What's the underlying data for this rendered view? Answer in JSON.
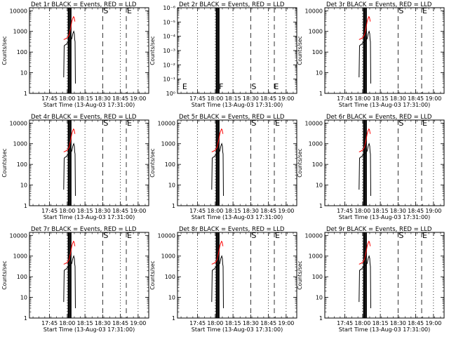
{
  "chart_data": {
    "type": "line",
    "layout": "3x3 grid",
    "xlabel": "Start Time (13-Aug-03 17:31:00)",
    "ylabel": "Counts/sec",
    "x_ticks": [
      "17:45",
      "18:00",
      "18:15",
      "18:30",
      "18:45",
      "19:00"
    ],
    "x_tick_minutes": [
      14,
      29,
      44,
      59,
      74,
      89
    ],
    "xlim_minutes": [
      -3,
      98
    ],
    "yscale": "log",
    "ylim": [
      1,
      14000
    ],
    "y_ticks": [
      "1",
      "10",
      "100",
      "1000",
      "10000"
    ],
    "series_styles": [
      {
        "color": "#000000"
      },
      {
        "color": "#ff0000"
      }
    ],
    "vlines": [
      {
        "minute": 14,
        "style": "dotted"
      },
      {
        "minute": 29,
        "style": "dotted"
      },
      {
        "minute": 30.2,
        "style": "thick"
      },
      {
        "minute": 31.8,
        "style": "thick"
      },
      {
        "minute": 44,
        "style": "dotted"
      },
      {
        "minute": 59,
        "style": "dashed"
      },
      {
        "minute": 74,
        "style": "dotted"
      },
      {
        "minute": 79,
        "style": "dashed"
      },
      {
        "minute": 89,
        "style": "dotted"
      }
    ],
    "marker_letters": [
      {
        "minute": 59,
        "text": "S"
      },
      {
        "minute": 79,
        "text": "E"
      }
    ],
    "panels": [
      {
        "title": "Det 1r BLACK = Events, RED = LLD",
        "variant": "standard",
        "black": [
          [
            26.0,
            6
          ],
          [
            26.4,
            200
          ],
          [
            26.9,
            215
          ],
          [
            27.4,
            225
          ],
          [
            28.2,
            240
          ],
          [
            29.5,
            300
          ],
          [
            31.0,
            350
          ],
          [
            32.8,
            440
          ],
          [
            33.8,
            800
          ],
          [
            34.5,
            1000
          ],
          [
            35.0,
            780
          ],
          [
            35.3,
            400
          ],
          [
            35.6,
            320
          ],
          [
            35.9,
            3
          ]
        ],
        "red": [
          [
            26.0,
            400
          ],
          [
            26.6,
            420
          ],
          [
            27.4,
            430
          ],
          [
            28.2,
            470
          ],
          [
            29.2,
            500
          ],
          [
            30.6,
            700
          ],
          [
            31.8,
            1400
          ],
          [
            32.8,
            3000
          ],
          [
            33.6,
            4200
          ],
          [
            34.3,
            5200
          ],
          [
            34.8,
            4800
          ],
          [
            35.2,
            3600
          ],
          [
            35.5,
            3000
          ]
        ]
      },
      {
        "title": "Det 2r BLACK = Events, RED = LLD",
        "variant": "empty",
        "y_ticks_text": [
          "10⁰",
          "10⁻¹",
          "10⁻²",
          "10⁻³",
          "10⁻⁴",
          "10⁻⁵",
          "10⁻⁶"
        ],
        "letters": [
          {
            "minute": 0.5,
            "text": "E"
          },
          {
            "minute": 31.5,
            "text": "F"
          },
          {
            "minute": 59,
            "text": "S"
          },
          {
            "minute": 78,
            "text": "E"
          }
        ],
        "black": [],
        "red": []
      },
      {
        "title": "Det 3r BLACK = Events, RED = LLD",
        "variant": "standard",
        "black": [
          [
            26.0,
            6
          ],
          [
            26.4,
            200
          ],
          [
            26.9,
            215
          ],
          [
            27.4,
            225
          ],
          [
            28.2,
            240
          ],
          [
            29.5,
            300
          ],
          [
            31.0,
            350
          ],
          [
            32.8,
            440
          ],
          [
            33.8,
            800
          ],
          [
            34.5,
            1000
          ],
          [
            35.0,
            780
          ],
          [
            35.3,
            400
          ],
          [
            35.6,
            320
          ],
          [
            35.9,
            3
          ]
        ],
        "red": [
          [
            26.0,
            400
          ],
          [
            26.6,
            420
          ],
          [
            27.4,
            430
          ],
          [
            28.2,
            470
          ],
          [
            29.2,
            500
          ],
          [
            30.6,
            700
          ],
          [
            31.8,
            1400
          ],
          [
            32.8,
            3000
          ],
          [
            33.6,
            4200
          ],
          [
            34.3,
            5200
          ],
          [
            34.8,
            4800
          ],
          [
            35.2,
            3600
          ],
          [
            35.5,
            3000
          ]
        ]
      },
      {
        "title": "Det 4r BLACK = Events, RED = LLD",
        "variant": "standard",
        "black": [
          [
            26.0,
            6
          ],
          [
            26.4,
            200
          ],
          [
            26.9,
            215
          ],
          [
            27.4,
            225
          ],
          [
            28.2,
            240
          ],
          [
            29.5,
            300
          ],
          [
            31.0,
            350
          ],
          [
            32.8,
            440
          ],
          [
            33.8,
            800
          ],
          [
            34.5,
            1000
          ],
          [
            35.0,
            780
          ],
          [
            35.3,
            400
          ],
          [
            35.6,
            320
          ],
          [
            35.9,
            3
          ]
        ],
        "red": [
          [
            26.0,
            400
          ],
          [
            26.6,
            420
          ],
          [
            27.4,
            430
          ],
          [
            28.2,
            470
          ],
          [
            29.2,
            500
          ],
          [
            30.6,
            700
          ],
          [
            31.8,
            1400
          ],
          [
            32.8,
            3000
          ],
          [
            33.6,
            4200
          ],
          [
            34.3,
            5200
          ],
          [
            34.8,
            4800
          ],
          [
            35.2,
            3600
          ],
          [
            35.5,
            3000
          ]
        ]
      },
      {
        "title": "Det 5r BLACK = Events, RED = LLD",
        "variant": "standard",
        "black": [
          [
            26.0,
            6
          ],
          [
            26.4,
            200
          ],
          [
            26.9,
            215
          ],
          [
            27.4,
            225
          ],
          [
            28.2,
            240
          ],
          [
            29.5,
            300
          ],
          [
            31.0,
            350
          ],
          [
            32.8,
            440
          ],
          [
            33.8,
            800
          ],
          [
            34.5,
            1000
          ],
          [
            35.0,
            780
          ],
          [
            35.3,
            400
          ],
          [
            35.6,
            320
          ],
          [
            35.9,
            3
          ]
        ],
        "red": [
          [
            26.0,
            400
          ],
          [
            26.6,
            420
          ],
          [
            27.4,
            430
          ],
          [
            28.2,
            470
          ],
          [
            29.2,
            500
          ],
          [
            30.6,
            700
          ],
          [
            31.8,
            1400
          ],
          [
            32.8,
            3000
          ],
          [
            33.6,
            4200
          ],
          [
            34.3,
            5200
          ],
          [
            34.8,
            4800
          ],
          [
            35.2,
            3600
          ],
          [
            35.5,
            3000
          ]
        ]
      },
      {
        "title": "Det 6r BLACK = Events, RED = LLD",
        "variant": "standard",
        "black": [
          [
            26.0,
            6
          ],
          [
            26.4,
            200
          ],
          [
            26.9,
            215
          ],
          [
            27.4,
            225
          ],
          [
            28.2,
            240
          ],
          [
            29.5,
            300
          ],
          [
            31.0,
            350
          ],
          [
            32.8,
            440
          ],
          [
            33.8,
            800
          ],
          [
            34.5,
            1000
          ],
          [
            35.0,
            780
          ],
          [
            35.3,
            400
          ],
          [
            35.6,
            320
          ],
          [
            35.9,
            3
          ]
        ],
        "red": [
          [
            26.0,
            400
          ],
          [
            26.6,
            420
          ],
          [
            27.4,
            430
          ],
          [
            28.2,
            470
          ],
          [
            29.2,
            500
          ],
          [
            30.6,
            700
          ],
          [
            31.8,
            1400
          ],
          [
            32.8,
            3000
          ],
          [
            33.6,
            4200
          ],
          [
            34.3,
            5200
          ],
          [
            34.8,
            4800
          ],
          [
            35.2,
            3600
          ],
          [
            35.5,
            3000
          ]
        ]
      },
      {
        "title": "Det 7r BLACK = Events, RED = LLD",
        "variant": "standard",
        "black": [
          [
            26.0,
            6
          ],
          [
            26.4,
            200
          ],
          [
            26.9,
            215
          ],
          [
            27.4,
            225
          ],
          [
            28.2,
            240
          ],
          [
            29.5,
            300
          ],
          [
            31.0,
            350
          ],
          [
            32.8,
            440
          ],
          [
            33.8,
            800
          ],
          [
            34.5,
            1000
          ],
          [
            35.0,
            780
          ],
          [
            35.3,
            400
          ],
          [
            35.6,
            320
          ],
          [
            35.9,
            3
          ]
        ],
        "red": [
          [
            26.0,
            400
          ],
          [
            26.6,
            420
          ],
          [
            27.4,
            430
          ],
          [
            28.2,
            470
          ],
          [
            29.2,
            500
          ],
          [
            30.6,
            700
          ],
          [
            31.8,
            1400
          ],
          [
            32.8,
            3000
          ],
          [
            33.6,
            4200
          ],
          [
            34.3,
            5200
          ],
          [
            34.8,
            4800
          ],
          [
            35.2,
            3600
          ],
          [
            35.5,
            3000
          ]
        ]
      },
      {
        "title": "Det 8r BLACK = Events, RED = LLD",
        "variant": "standard",
        "black": [
          [
            26.0,
            6
          ],
          [
            26.4,
            200
          ],
          [
            26.9,
            215
          ],
          [
            27.4,
            225
          ],
          [
            28.2,
            240
          ],
          [
            29.5,
            300
          ],
          [
            31.0,
            350
          ],
          [
            32.8,
            440
          ],
          [
            33.8,
            800
          ],
          [
            34.5,
            1000
          ],
          [
            35.0,
            780
          ],
          [
            35.3,
            400
          ],
          [
            35.6,
            320
          ],
          [
            35.9,
            3
          ]
        ],
        "red": [
          [
            26.0,
            400
          ],
          [
            26.6,
            420
          ],
          [
            27.4,
            430
          ],
          [
            28.2,
            470
          ],
          [
            29.2,
            500
          ],
          [
            30.6,
            700
          ],
          [
            31.8,
            1400
          ],
          [
            32.8,
            3000
          ],
          [
            33.6,
            4200
          ],
          [
            34.3,
            5200
          ],
          [
            34.8,
            4800
          ],
          [
            35.2,
            3600
          ],
          [
            35.5,
            3000
          ]
        ]
      },
      {
        "title": "Det 9r BLACK = Events, RED = LLD",
        "variant": "standard",
        "black": [
          [
            26.0,
            6
          ],
          [
            26.4,
            200
          ],
          [
            26.9,
            215
          ],
          [
            27.4,
            225
          ],
          [
            28.2,
            240
          ],
          [
            29.5,
            300
          ],
          [
            31.0,
            350
          ],
          [
            32.8,
            440
          ],
          [
            33.8,
            800
          ],
          [
            34.5,
            1000
          ],
          [
            35.0,
            780
          ],
          [
            35.3,
            400
          ],
          [
            35.6,
            320
          ],
          [
            35.9,
            3
          ]
        ],
        "red": [
          [
            26.0,
            400
          ],
          [
            26.6,
            420
          ],
          [
            27.4,
            430
          ],
          [
            28.2,
            470
          ],
          [
            29.2,
            500
          ],
          [
            30.6,
            700
          ],
          [
            31.8,
            1400
          ],
          [
            32.8,
            3000
          ],
          [
            33.6,
            4200
          ],
          [
            34.3,
            5200
          ],
          [
            34.8,
            4800
          ],
          [
            35.2,
            3600
          ],
          [
            35.5,
            3000
          ]
        ]
      }
    ]
  }
}
